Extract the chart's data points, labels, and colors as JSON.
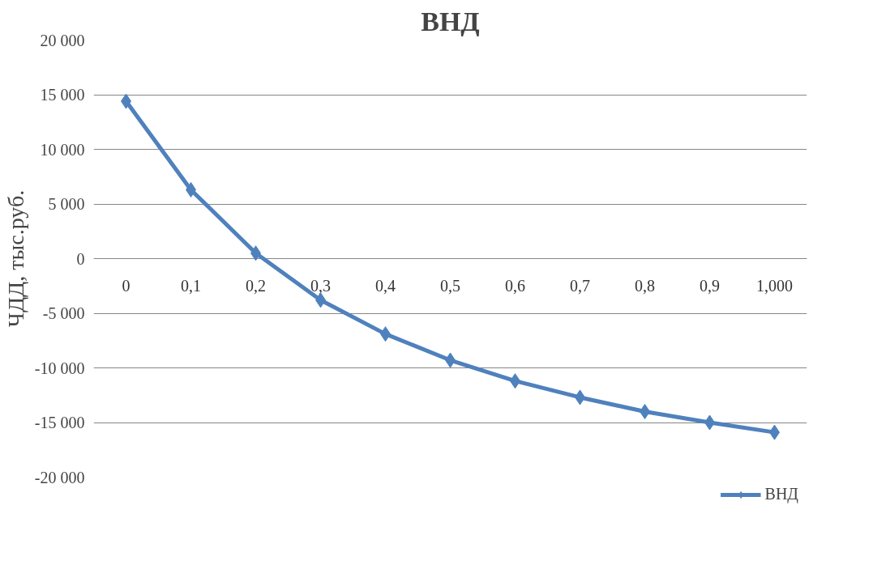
{
  "chart_data": {
    "type": "line",
    "title": "ВНД",
    "ylabel": "ЧДД, тыс.руб.",
    "categories": [
      "0",
      "0,1",
      "0,2",
      "0,3",
      "0,4",
      "0,5",
      "0,6",
      "0,7",
      "0,8",
      "0,9",
      "1,000"
    ],
    "series": [
      {
        "name": "ВНД",
        "color": "#4f81bd",
        "values": [
          14400,
          6300,
          500,
          -3800,
          -6900,
          -9300,
          -11200,
          -12700,
          -14000,
          -15000,
          -15900
        ]
      }
    ],
    "ylim": [
      -20000,
      20000
    ],
    "yticks": [
      {
        "value": -20000,
        "label": "-20 000"
      },
      {
        "value": -15000,
        "label": "-15 000"
      },
      {
        "value": -10000,
        "label": "-10 000"
      },
      {
        "value": -5000,
        "label": "-5 000"
      },
      0,
      {
        "value": 5000,
        "label": "5 000"
      },
      {
        "value": 10000,
        "label": "10 000"
      },
      {
        "value": 15000,
        "label": "15 000"
      },
      {
        "value": 20000,
        "label": "20 000"
      }
    ],
    "grid": "y",
    "legend": "bottom",
    "marker": "diamond",
    "line_style": "solid"
  }
}
